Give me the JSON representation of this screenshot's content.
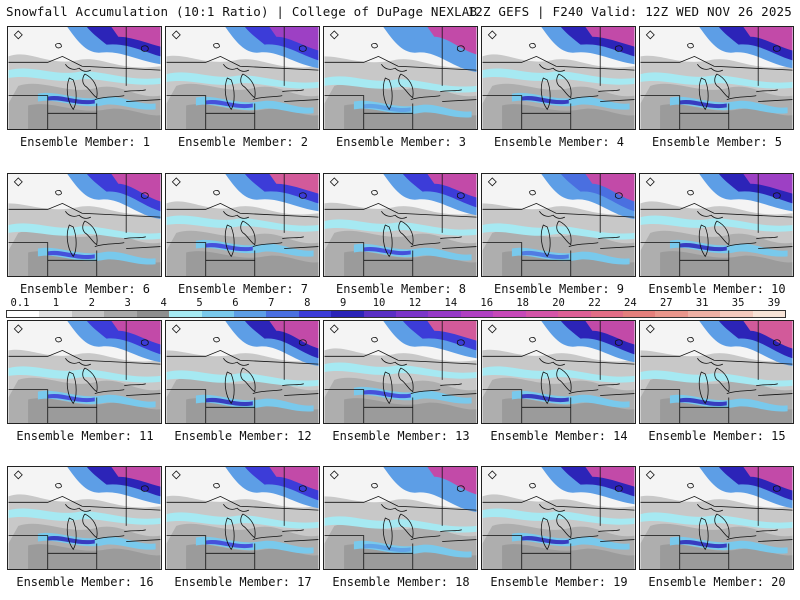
{
  "header": {
    "left_title": "Snowfall Accumulation (10:1 Ratio) | College of DuPage NEXLAB",
    "right_title": "12Z GEFS | F240 Valid: 12Z WED NOV 26 2025"
  },
  "colorbar": {
    "labels": [
      "0.1",
      "1",
      "2",
      "3",
      "4",
      "5",
      "6",
      "7",
      "8",
      "9",
      "10",
      "12",
      "14",
      "16",
      "18",
      "20",
      "22",
      "24",
      "27",
      "31",
      "35",
      "39"
    ],
    "colors": [
      "#ffffff",
      "#e0e0e0",
      "#c4c4c4",
      "#a8a8a8",
      "#8e8e8e",
      "#a6e9f2",
      "#79c9ec",
      "#5d9ee6",
      "#4a6fe0",
      "#3c3cd8",
      "#2c24b8",
      "#5a2fc4",
      "#7b35c9",
      "#9639c7",
      "#b040c2",
      "#c648b8",
      "#d454a8",
      "#dc5f96",
      "#e26d86",
      "#e57f7c",
      "#e9968c",
      "#efb0a4",
      "#f4cbbf",
      "#f8e4d8"
    ]
  },
  "panels": [
    {
      "label": "Ensemble Member: 1",
      "scheme": [
        1,
        3,
        2,
        1
      ]
    },
    {
      "label": "Ensemble Member: 2",
      "scheme": [
        0,
        2,
        1,
        0
      ]
    },
    {
      "label": "Ensemble Member: 3",
      "scheme": [
        2,
        3,
        3,
        1
      ]
    },
    {
      "label": "Ensemble Member: 4",
      "scheme": [
        2,
        3,
        2,
        1
      ]
    },
    {
      "label": "Ensemble Member: 5",
      "scheme": [
        1,
        3,
        2,
        1
      ]
    },
    {
      "label": "Ensemble Member: 6",
      "scheme": [
        0,
        3,
        1,
        0
      ]
    },
    {
      "label": "Ensemble Member: 7",
      "scheme": [
        1,
        4,
        1,
        0
      ]
    },
    {
      "label": "Ensemble Member: 8",
      "scheme": [
        2,
        3,
        1,
        1
      ]
    },
    {
      "label": "Ensemble Member: 9",
      "scheme": [
        0,
        3,
        0,
        0
      ]
    },
    {
      "label": "Ensemble Member: 10",
      "scheme": [
        1,
        2,
        2,
        1
      ]
    },
    {
      "label": "Ensemble Member: 11",
      "scheme": [
        1,
        3,
        1,
        1
      ]
    },
    {
      "label": "Ensemble Member: 12",
      "scheme": [
        1,
        3,
        2,
        1
      ]
    },
    {
      "label": "Ensemble Member: 13",
      "scheme": [
        2,
        4,
        1,
        0
      ]
    },
    {
      "label": "Ensemble Member: 14",
      "scheme": [
        2,
        3,
        2,
        1
      ]
    },
    {
      "label": "Ensemble Member: 15",
      "scheme": [
        1,
        4,
        2,
        1
      ]
    },
    {
      "label": "Ensemble Member: 16",
      "scheme": [
        2,
        3,
        2,
        1
      ]
    },
    {
      "label": "Ensemble Member: 17",
      "scheme": [
        1,
        3,
        1,
        0
      ]
    },
    {
      "label": "Ensemble Member: 18",
      "scheme": [
        1,
        3,
        3,
        1
      ]
    },
    {
      "label": "Ensemble Member: 19",
      "scheme": [
        2,
        3,
        2,
        1
      ]
    },
    {
      "label": "Ensemble Member: 20",
      "scheme": [
        2,
        3,
        2,
        1
      ]
    }
  ]
}
